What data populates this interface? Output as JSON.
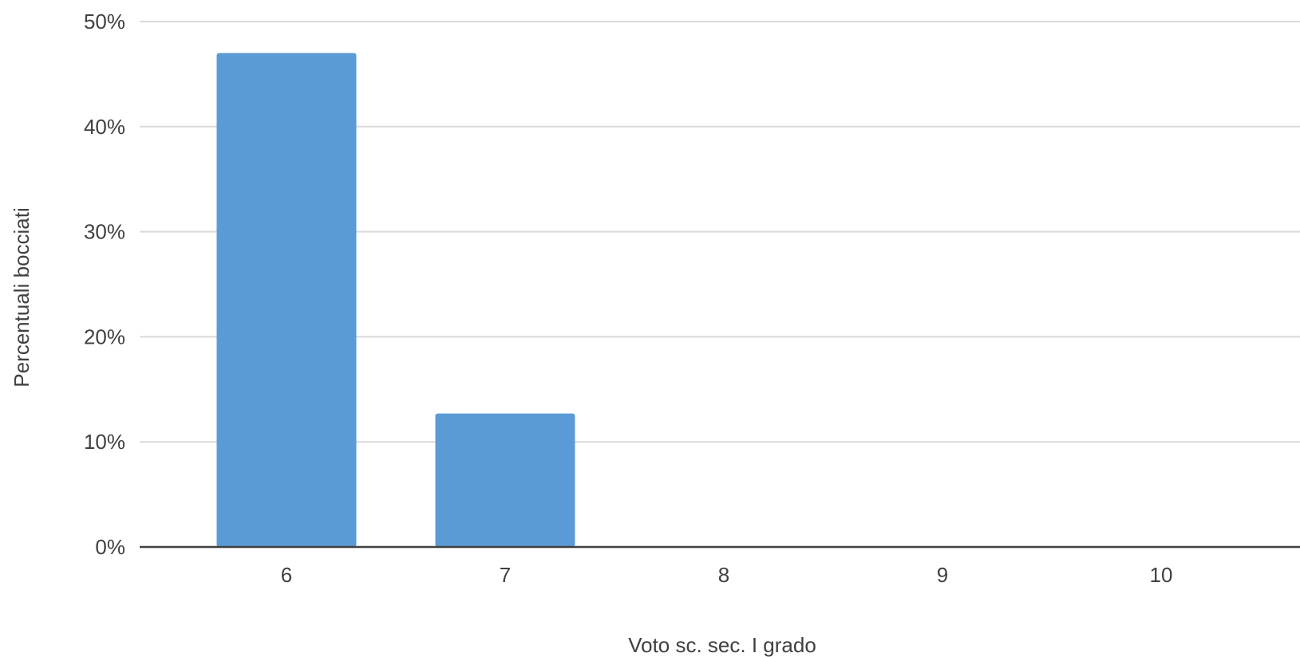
{
  "colors": {
    "bar": "#5b9bd5",
    "gridline": "#d9d9d9",
    "axis": "#404040",
    "text": "#404040"
  },
  "chart_data": {
    "type": "bar",
    "title": "",
    "xlabel": "Voto sc. sec. I grado",
    "ylabel": "Percentuali bocciati",
    "categories": [
      "6",
      "7",
      "8",
      "9",
      "10"
    ],
    "values": [
      0.47,
      0.127,
      0,
      0,
      0
    ],
    "ylim": [
      0,
      0.5
    ],
    "yticks": [
      {
        "value": 0,
        "label": "0%"
      },
      {
        "value": 0.1,
        "label": "10%"
      },
      {
        "value": 0.2,
        "label": "20%"
      },
      {
        "value": 0.3,
        "label": "30%"
      },
      {
        "value": 0.4,
        "label": "40%"
      },
      {
        "value": 0.5,
        "label": "50%"
      }
    ],
    "grid": true,
    "legend": "none"
  }
}
